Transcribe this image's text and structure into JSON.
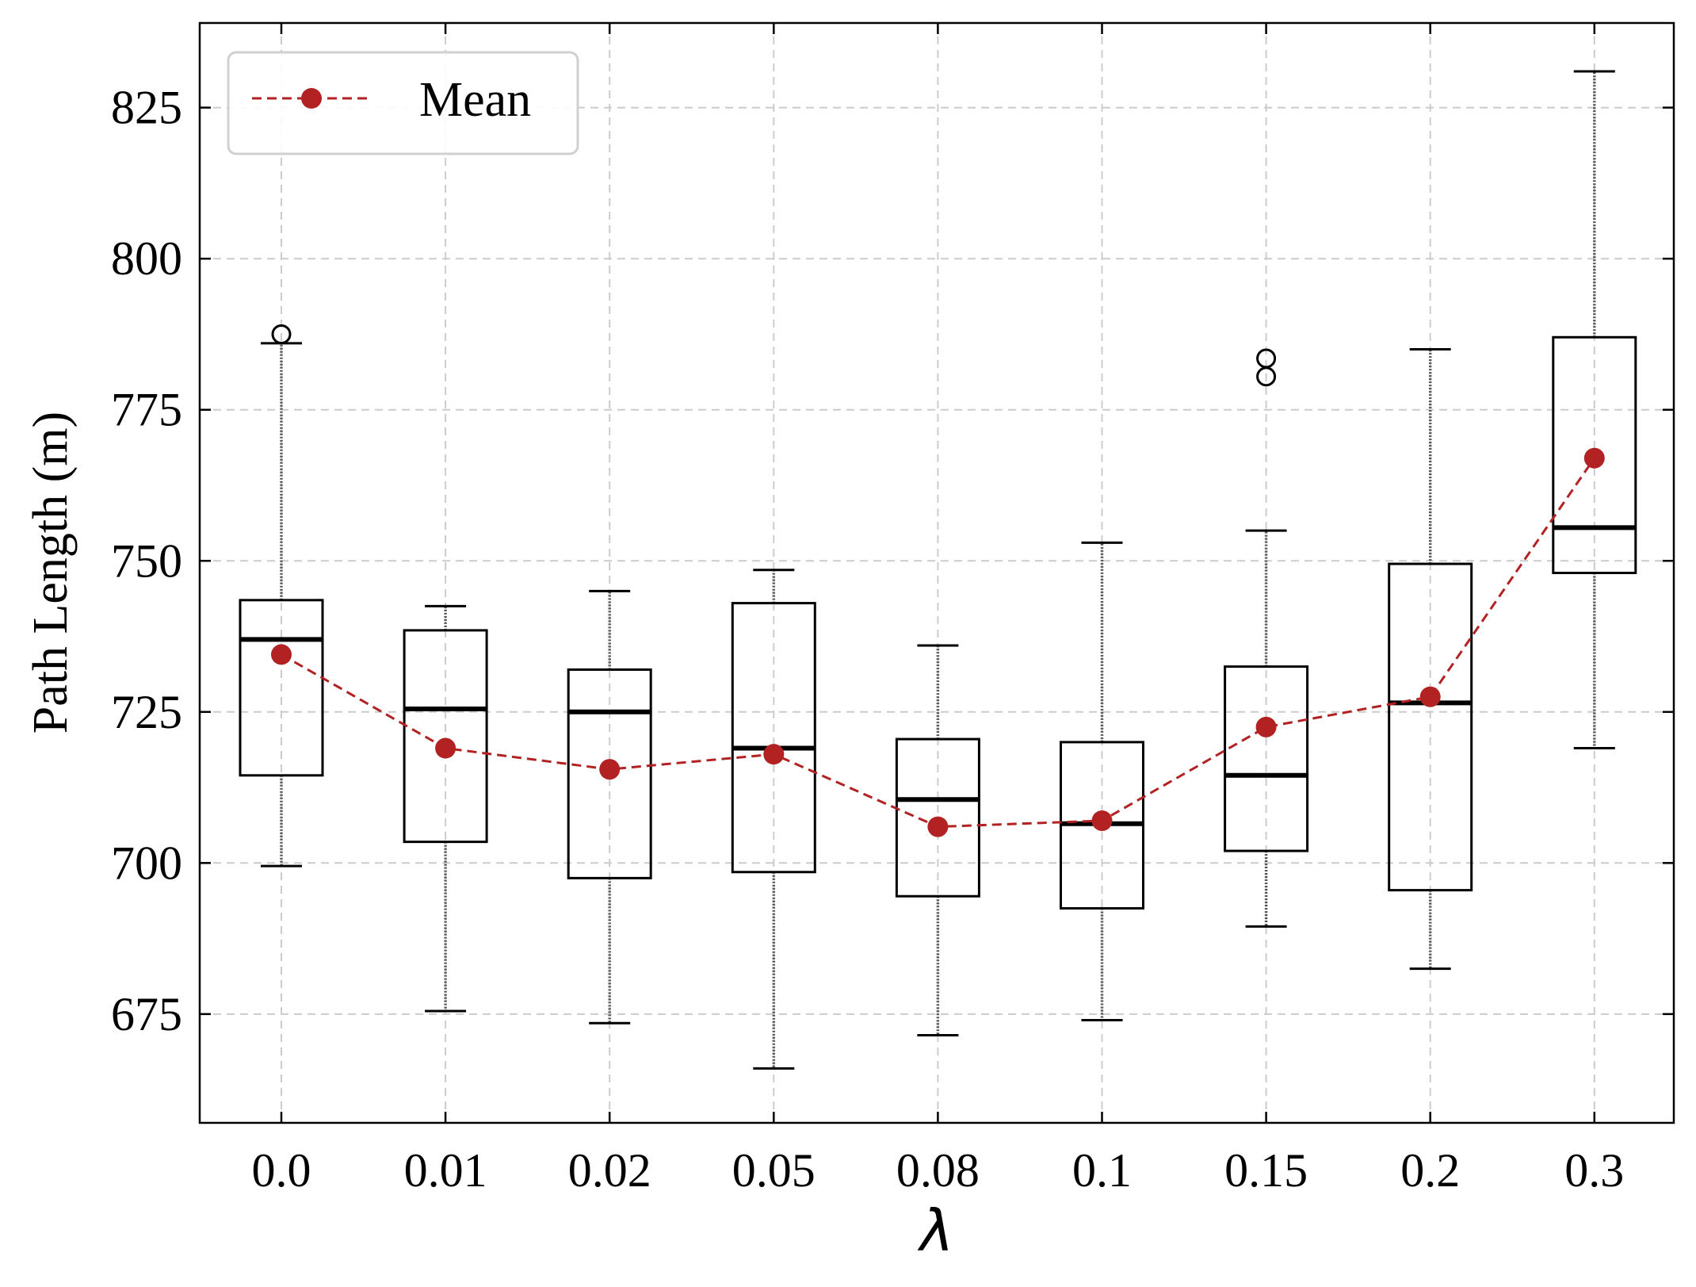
{
  "chart_data": {
    "type": "box",
    "title": "",
    "xlabel": "λ",
    "ylabel": "Path Length (m)",
    "categories": [
      "0.0",
      "0.01",
      "0.02",
      "0.05",
      "0.08",
      "0.1",
      "0.15",
      "0.2",
      "0.3"
    ],
    "ylim": [
      657,
      839
    ],
    "yticks": [
      675,
      700,
      725,
      750,
      775,
      800,
      825
    ],
    "ytick_labels": [
      "675",
      "700",
      "725",
      "750",
      "775",
      "800",
      "825"
    ],
    "grid": true,
    "boxes": [
      {
        "category": "0.0",
        "whisker_low": 699.5,
        "q1": 714.5,
        "median": 737,
        "q3": 743.5,
        "whisker_high": 786,
        "outliers": [
          787.5
        ]
      },
      {
        "category": "0.01",
        "whisker_low": 675.5,
        "q1": 703.5,
        "median": 725.5,
        "q3": 738.5,
        "whisker_high": 742.5,
        "outliers": []
      },
      {
        "category": "0.02",
        "whisker_low": 673.5,
        "q1": 697.5,
        "median": 725.0,
        "q3": 732.0,
        "whisker_high": 745.0,
        "outliers": []
      },
      {
        "category": "0.05",
        "whisker_low": 666.0,
        "q1": 698.5,
        "median": 719.0,
        "q3": 743.0,
        "whisker_high": 748.5,
        "outliers": []
      },
      {
        "category": "0.08",
        "whisker_low": 671.5,
        "q1": 694.5,
        "median": 710.5,
        "q3": 720.5,
        "whisker_high": 736.0,
        "outliers": []
      },
      {
        "category": "0.1",
        "whisker_low": 674.0,
        "q1": 692.5,
        "median": 706.5,
        "q3": 720.0,
        "whisker_high": 753.0,
        "outliers": []
      },
      {
        "category": "0.15",
        "whisker_low": 689.5,
        "q1": 702.0,
        "median": 714.5,
        "q3": 732.5,
        "whisker_high": 755.0,
        "outliers": [
          783.5,
          780.5
        ]
      },
      {
        "category": "0.2",
        "whisker_low": 682.5,
        "q1": 695.5,
        "median": 726.5,
        "q3": 749.5,
        "whisker_high": 785.0,
        "outliers": []
      },
      {
        "category": "0.3",
        "whisker_low": 719.0,
        "q1": 748.0,
        "median": 755.5,
        "q3": 787.0,
        "whisker_high": 831.0,
        "outliers": []
      }
    ],
    "series": [
      {
        "name": "Mean",
        "type": "line",
        "style": "dashed",
        "marker": "circle",
        "color": "#b22222",
        "values": [
          734.5,
          719.0,
          715.5,
          718.0,
          706.0,
          707.0,
          722.5,
          727.5,
          767.0
        ]
      }
    ],
    "legend": {
      "position": "top-left",
      "entries": [
        "Mean"
      ]
    }
  }
}
